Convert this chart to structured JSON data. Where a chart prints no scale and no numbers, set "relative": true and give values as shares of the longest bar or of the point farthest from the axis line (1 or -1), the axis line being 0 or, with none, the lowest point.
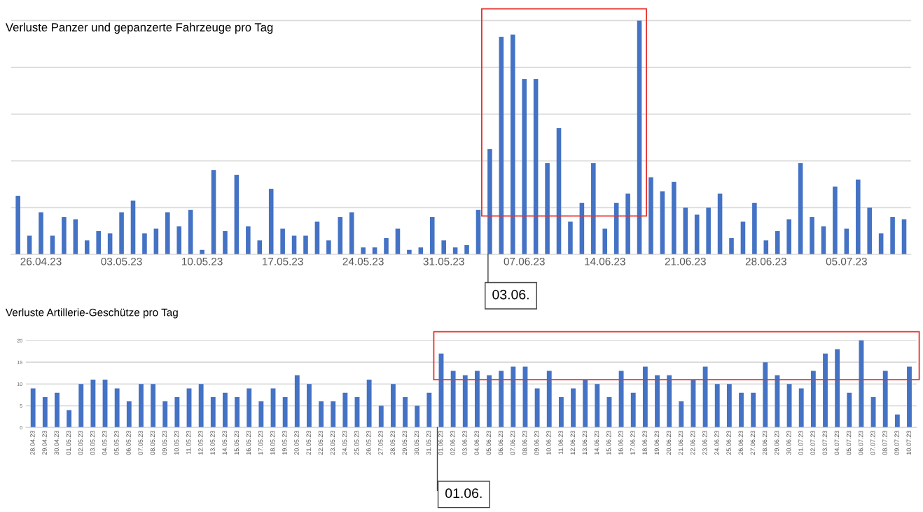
{
  "chart_data": [
    {
      "type": "bar",
      "title": "Verluste Panzer und gepanzerte Fahrzeuge pro Tag",
      "relative": true,
      "color": "#4472c4",
      "grid": "y",
      "categories": [
        null,
        null,
        "26.04.23",
        null,
        null,
        null,
        null,
        null,
        null,
        "03.05.23",
        null,
        null,
        null,
        null,
        null,
        null,
        "10.05.23",
        null,
        null,
        null,
        null,
        null,
        null,
        "17.05.23",
        null,
        null,
        null,
        null,
        null,
        null,
        "24.05.23",
        null,
        null,
        null,
        null,
        null,
        null,
        "31.05.23",
        null,
        null,
        null,
        null,
        null,
        null,
        "07.06.23",
        null,
        null,
        null,
        null,
        null,
        null,
        "14.06.23",
        null,
        null,
        null,
        null,
        null,
        null,
        "21.06.23",
        null,
        null,
        null,
        null,
        null,
        null,
        "28.06.23",
        null,
        null,
        null,
        null,
        null,
        null,
        "05.07.23",
        null,
        null,
        null,
        null,
        null
      ],
      "values": [
        0.25,
        0.08,
        0.18,
        0.08,
        0.16,
        0.15,
        0.06,
        0.1,
        0.09,
        0.18,
        0.23,
        0.09,
        0.11,
        0.18,
        0.12,
        0.19,
        0.02,
        0.36,
        0.1,
        0.34,
        0.12,
        0.06,
        0.28,
        0.11,
        0.08,
        0.08,
        0.14,
        0.06,
        0.16,
        0.18,
        0.03,
        0.03,
        0.07,
        0.11,
        0.02,
        0.03,
        0.16,
        0.06,
        0.03,
        0.04,
        0.19,
        0.45,
        0.93,
        0.94,
        0.75,
        0.75,
        0.39,
        0.54,
        0.14,
        0.22,
        0.39,
        0.11,
        0.22,
        0.26,
        1,
        0.33,
        0.27,
        0.31,
        0.2,
        0.17,
        0.2,
        0.26,
        0.07,
        0.14,
        0.22,
        0.06,
        0.1,
        0.15,
        0.39,
        0.16,
        0.12,
        0.29,
        0.11,
        0.32,
        0.2,
        0.09,
        0.16,
        0.15
      ],
      "annotations": [
        "03.06."
      ]
    },
    {
      "type": "bar",
      "title": "Verluste Artillerie-Geschütze pro Tag",
      "color": "#4472c4",
      "grid": "y",
      "ylim": [
        0,
        20
      ],
      "yticks": [
        0,
        5,
        10,
        15,
        20
      ],
      "categories": [
        "28.04.23",
        "29.04.23",
        "30.04.23",
        "01.05.23",
        "02.05.23",
        "03.05.23",
        "04.05.23",
        "05.05.23",
        "06.05.23",
        "07.05.23",
        "08.05.23",
        "09.05.23",
        "10.05.23",
        "11.05.23",
        "12.05.23",
        "13.05.23",
        "14.05.23",
        "15.05.23",
        "16.05.23",
        "17.05.23",
        "18.05.23",
        "19.05.23",
        "20.05.23",
        "21.05.23",
        "22.05.23",
        "23.05.23",
        "24.05.23",
        "25.05.23",
        "26.05.23",
        "27.05.23",
        "28.05.23",
        "29.05.23",
        "30.05.23",
        "31.05.23",
        "01.06.23",
        "02.06.23",
        "03.06.23",
        "04.06.23",
        "05.06.23",
        "06.06.23",
        "07.06.23",
        "08.06.23",
        "09.06.23",
        "10.06.23",
        "11.06.23",
        "12.06.23",
        "13.06.23",
        "14.06.23",
        "15.06.23",
        "16.06.23",
        "17.06.23",
        "18.06.23",
        "19.06.23",
        "20.06.23",
        "21.06.23",
        "22.06.23",
        "23.06.23",
        "24.06.23",
        "25.06.23",
        "26.06.23",
        "27.06.23",
        "28.06.23",
        "29.06.23",
        "30.06.23",
        "01.07.23",
        "02.07.23",
        "03.07.23",
        "04.07.23",
        "05.07.23",
        "06.07.23",
        "07.07.23",
        "08.07.23",
        "09.07.23",
        "10.07.23"
      ],
      "values": [
        9,
        7,
        8,
        4,
        10,
        11,
        11,
        9,
        6,
        10,
        10,
        6,
        7,
        9,
        10,
        7,
        8,
        7,
        9,
        6,
        9,
        7,
        12,
        10,
        6,
        6,
        8,
        7,
        11,
        5,
        10,
        7,
        5,
        8,
        17,
        13,
        12,
        13,
        12,
        13,
        14,
        14,
        9,
        13,
        7,
        9,
        11,
        10,
        7,
        13,
        8,
        14,
        12,
        12,
        6,
        11,
        14,
        10,
        10,
        8,
        8,
        15,
        12,
        10,
        9,
        13,
        17,
        18,
        8,
        20,
        7,
        13,
        3,
        14
      ],
      "annotations": [
        "01.06."
      ]
    }
  ]
}
